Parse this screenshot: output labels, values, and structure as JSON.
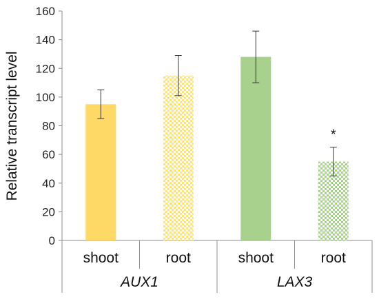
{
  "chart_data": {
    "type": "bar",
    "ylabel": "Relative transcript level",
    "xlabel": "",
    "ylim": [
      0,
      160
    ],
    "yticks": [
      0,
      20,
      40,
      60,
      80,
      100,
      120,
      140,
      160
    ],
    "grid": false,
    "legend": "none",
    "groups": [
      {
        "label": "AUX1",
        "categories": [
          "shoot",
          "root"
        ]
      },
      {
        "label": "LAX3",
        "categories": [
          "shoot",
          "root"
        ]
      }
    ],
    "bars": [
      {
        "group": "AUX1",
        "category": "shoot",
        "value": 95,
        "error": 10,
        "color": "#FFD966",
        "pattern": "solid",
        "annotation": ""
      },
      {
        "group": "AUX1",
        "category": "root",
        "value": 115,
        "error": 14,
        "color": "#FFE27A",
        "pattern": "checkered",
        "annotation": ""
      },
      {
        "group": "LAX3",
        "category": "shoot",
        "value": 128,
        "error": 18,
        "color": "#A9D18E",
        "pattern": "solid",
        "annotation": ""
      },
      {
        "group": "LAX3",
        "category": "root",
        "value": 55,
        "error": 10,
        "color": "#A9D18E",
        "pattern": "checkered",
        "annotation": "*"
      }
    ]
  }
}
